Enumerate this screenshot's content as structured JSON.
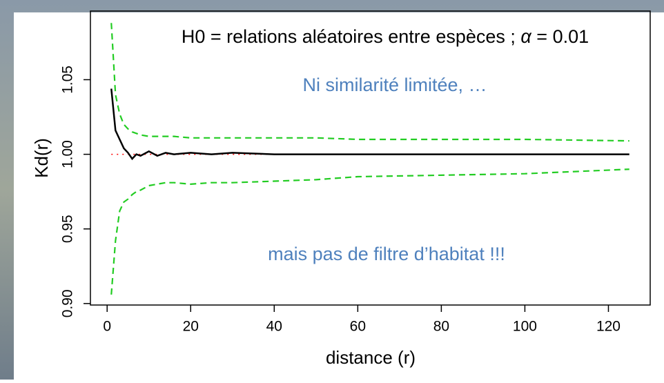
{
  "chart_data": {
    "type": "line",
    "xlabel": "distance (r)",
    "ylabel": "Kd(r)",
    "annotations": [
      {
        "parts": [
          "H0 = relations aléatoires entre espèces ; ",
          "α",
          " = 0.01"
        ],
        "color": "#000000"
      },
      {
        "text": "Ni similarité limitée, …",
        "color": "#4f81bd"
      },
      {
        "text": "mais pas de filtre d’habitat !!!",
        "color": "#4f81bd"
      }
    ],
    "x": [
      1,
      2,
      3,
      4,
      5,
      6,
      7,
      8,
      10,
      12,
      14,
      16,
      20,
      25,
      30,
      40,
      50,
      60,
      80,
      100,
      125
    ],
    "series": [
      {
        "color": "#000000",
        "dash": "solid",
        "values": [
          1.044,
          1.016,
          1.01,
          1.004,
          1.001,
          0.997,
          1.0,
          0.999,
          1.002,
          0.999,
          1.001,
          1.0,
          1.001,
          1.0,
          1.001,
          1.0,
          1.0,
          1.0,
          1.0,
          1.0,
          1.0
        ]
      },
      {
        "color": "#22cc22",
        "dash": "dashed",
        "values": [
          1.088,
          1.04,
          1.027,
          1.02,
          1.017,
          1.015,
          1.014,
          1.013,
          1.012,
          1.012,
          1.012,
          1.012,
          1.011,
          1.011,
          1.011,
          1.011,
          1.011,
          1.01,
          1.01,
          1.01,
          1.009
        ]
      },
      {
        "color": "#22cc22",
        "dash": "dashed",
        "values": [
          0.906,
          0.942,
          0.962,
          0.968,
          0.97,
          0.973,
          0.975,
          0.976,
          0.979,
          0.98,
          0.981,
          0.981,
          0.98,
          0.981,
          0.981,
          0.982,
          0.983,
          0.985,
          0.986,
          0.987,
          0.99
        ]
      }
    ],
    "hline": {
      "value": 1,
      "color": "#ff0000",
      "dash": "dotted"
    },
    "xlim": [
      -4,
      130
    ],
    "ylim": [
      0.899,
      1.096
    ],
    "xticks": [
      0,
      20,
      40,
      60,
      80,
      100,
      120
    ],
    "yticks": [
      {
        "value": 0.9,
        "label": "0.90"
      },
      0.95,
      {
        "value": 1,
        "label": "1.00"
      },
      1.05
    ]
  }
}
